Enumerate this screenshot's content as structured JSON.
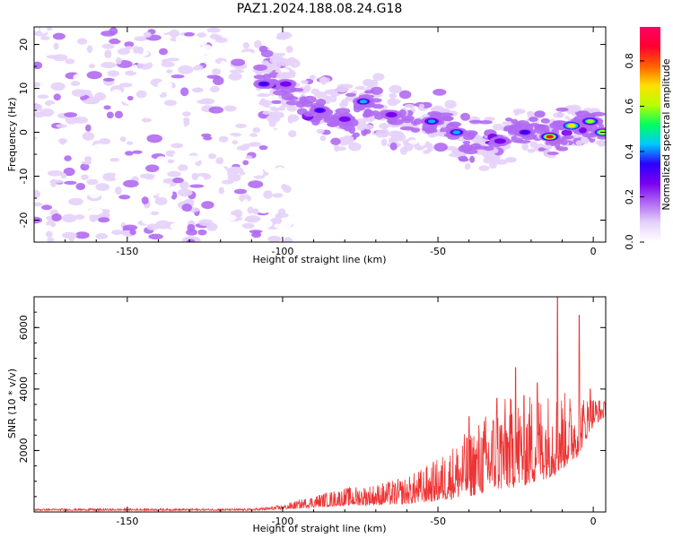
{
  "title": "PAZ1.2024.188.08.24.G18",
  "chart_data": [
    {
      "type": "heatmap",
      "xlabel": "Height of straight line (km)",
      "ylabel": "Frequency (Hz)",
      "xlim": [
        -180,
        4
      ],
      "ylim": [
        -25,
        24
      ],
      "xticks": [
        -150,
        -100,
        -50,
        0
      ],
      "yticks": [
        -20,
        -10,
        0,
        10,
        20
      ],
      "colorbar": {
        "label": "Normalized spectral amplitude",
        "ticks": [
          0.0,
          0.2,
          0.4,
          0.6,
          0.8
        ],
        "range": [
          0,
          0.95
        ],
        "stops": [
          "#ffffff",
          "#e6d2fa",
          "#b06af2",
          "#7a00f0",
          "#2b00ff",
          "#00c8ff",
          "#00ff60",
          "#b8ff00",
          "#ffe000",
          "#ff6000",
          "#ff0030",
          "#ff0066"
        ]
      },
      "noise_region_xlim": [
        -180,
        -97
      ],
      "ridge": [
        {
          "x": -108,
          "y": 11
        },
        {
          "x": -100,
          "y": 10
        },
        {
          "x": -95,
          "y": 7
        },
        {
          "x": -90,
          "y": 5
        },
        {
          "x": -84,
          "y": 4
        },
        {
          "x": -78,
          "y": 3
        },
        {
          "x": -72,
          "y": 7
        },
        {
          "x": -68,
          "y": 5
        },
        {
          "x": -62,
          "y": 3
        },
        {
          "x": -56,
          "y": 0
        },
        {
          "x": -50,
          "y": 3
        },
        {
          "x": -45,
          "y": 0
        },
        {
          "x": -38,
          "y": -3
        },
        {
          "x": -30,
          "y": -2
        },
        {
          "x": -24,
          "y": 0
        },
        {
          "x": -18,
          "y": 1
        },
        {
          "x": -14,
          "y": -1
        },
        {
          "x": -7,
          "y": 1.5
        },
        {
          "x": -2,
          "y": 2
        },
        {
          "x": 3,
          "y": 0
        }
      ],
      "peaks": [
        {
          "x": -106,
          "y": 11,
          "amp": 0.35
        },
        {
          "x": -99,
          "y": 11,
          "amp": 0.3
        },
        {
          "x": -88,
          "y": 5,
          "amp": 0.35
        },
        {
          "x": -80,
          "y": 3,
          "amp": 0.3
        },
        {
          "x": -74,
          "y": 7,
          "amp": 0.4
        },
        {
          "x": -65,
          "y": 4,
          "amp": 0.3
        },
        {
          "x": -52,
          "y": 2.5,
          "amp": 0.45
        },
        {
          "x": -44,
          "y": 0,
          "amp": 0.4
        },
        {
          "x": -30,
          "y": -2,
          "amp": 0.3
        },
        {
          "x": -22,
          "y": 0,
          "amp": 0.35
        },
        {
          "x": -14,
          "y": -1,
          "amp": 0.85
        },
        {
          "x": -7,
          "y": 1.5,
          "amp": 0.7
        },
        {
          "x": -1,
          "y": 2.5,
          "amp": 0.6
        },
        {
          "x": 3,
          "y": 0,
          "amp": 0.65
        }
      ]
    },
    {
      "type": "line",
      "xlabel": "Height of straight line (km)",
      "ylabel": "SNR (10 * v/v)",
      "xlim": [
        -180,
        4
      ],
      "ylim": [
        0,
        7000
      ],
      "xticks": [
        -150,
        -100,
        -50,
        0
      ],
      "yticks": [
        2000,
        4000,
        6000
      ],
      "color": "#ee3333",
      "envelope": [
        {
          "x": -180,
          "base": 50,
          "spread": 60
        },
        {
          "x": -110,
          "base": 50,
          "spread": 60
        },
        {
          "x": -100,
          "base": 80,
          "spread": 150
        },
        {
          "x": -90,
          "base": 150,
          "spread": 400
        },
        {
          "x": -80,
          "base": 200,
          "spread": 600
        },
        {
          "x": -70,
          "base": 220,
          "spread": 700
        },
        {
          "x": -60,
          "base": 250,
          "spread": 900
        },
        {
          "x": -50,
          "base": 350,
          "spread": 1400
        },
        {
          "x": -40,
          "base": 500,
          "spread": 2200
        },
        {
          "x": -30,
          "base": 700,
          "spread": 3000
        },
        {
          "x": -20,
          "base": 900,
          "spread": 3000
        },
        {
          "x": -12,
          "base": 1200,
          "spread": 2800
        },
        {
          "x": -5,
          "base": 1800,
          "spread": 2000
        },
        {
          "x": 0,
          "base": 2800,
          "spread": 1000
        },
        {
          "x": 4,
          "base": 3100,
          "spread": 500
        }
      ],
      "spikes": [
        {
          "x": -40,
          "y": 3100
        },
        {
          "x": -31,
          "y": 3700
        },
        {
          "x": -25,
          "y": 4700
        },
        {
          "x": -18,
          "y": 4200
        },
        {
          "x": -11.5,
          "y": 7000
        },
        {
          "x": -4.5,
          "y": 6400
        },
        {
          "x": -1,
          "y": 4000
        }
      ]
    }
  ]
}
